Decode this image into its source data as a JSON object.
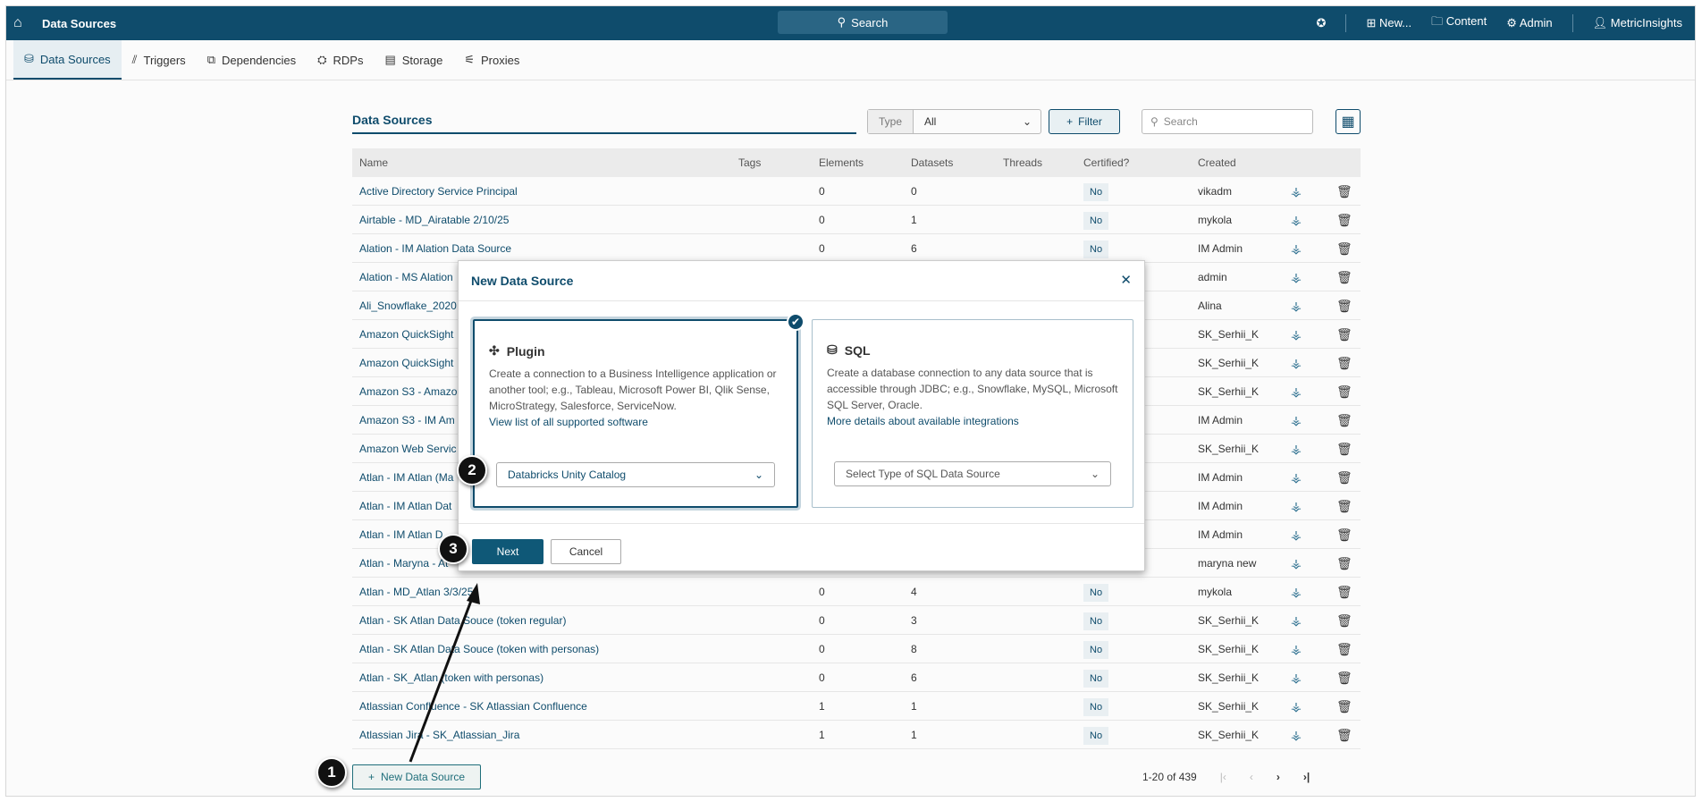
{
  "topbar": {
    "title": "Data Sources",
    "search": "Search",
    "new": "New...",
    "content": "Content",
    "admin": "Admin",
    "user": "MetricInsights"
  },
  "tabs": [
    {
      "label": "Data Sources",
      "icon": "database-icon"
    },
    {
      "label": "Triggers",
      "icon": "triggers-icon"
    },
    {
      "label": "Dependencies",
      "icon": "dependencies-icon"
    },
    {
      "label": "RDPs",
      "icon": "rdps-icon"
    },
    {
      "label": "Storage",
      "icon": "storage-icon"
    },
    {
      "label": "Proxies",
      "icon": "proxies-icon"
    }
  ],
  "panel": {
    "title": "Data Sources",
    "type_label": "Type",
    "type_value": "All",
    "filter": "Filter",
    "search_placeholder": "Search"
  },
  "columns": [
    "Name",
    "Tags",
    "Elements",
    "Datasets",
    "Threads",
    "Certified?",
    "Created"
  ],
  "rows": [
    {
      "name": "Active Directory Service Principal",
      "elements": "0",
      "datasets": "0",
      "certified": "No",
      "created": "vikadm"
    },
    {
      "name": "Airtable - MD_Airatable 2/10/25",
      "elements": "0",
      "datasets": "1",
      "certified": "No",
      "created": "mykola"
    },
    {
      "name": "Alation - IM Alation Data Source",
      "elements": "0",
      "datasets": "6",
      "certified": "No",
      "created": "IM Admin"
    },
    {
      "name": "Alation - MS Alation",
      "created": "admin"
    },
    {
      "name": "Ali_Snowflake_2020",
      "created": "Alina"
    },
    {
      "name": "Amazon QuickSight",
      "created": "SK_Serhii_K"
    },
    {
      "name": "Amazon QuickSight",
      "created": "SK_Serhii_K"
    },
    {
      "name": "Amazon S3 - Amazo",
      "created": "SK_Serhii_K"
    },
    {
      "name": "Amazon S3 - IM Am",
      "created": "IM Admin"
    },
    {
      "name": "Amazon Web Servic",
      "created": "SK_Serhii_K"
    },
    {
      "name": "Atlan - IM Atlan (Ma",
      "created": "IM Admin"
    },
    {
      "name": "Atlan - IM Atlan Dat",
      "created": "IM Admin"
    },
    {
      "name": "Atlan - IM Atlan D",
      "created": "IM Admin"
    },
    {
      "name": "Atlan - Maryna - At",
      "created": "maryna new"
    },
    {
      "name": "Atlan - MD_Atlan 3/3/25",
      "elements": "0",
      "datasets": "4",
      "certified": "No",
      "created": "mykola"
    },
    {
      "name": "Atlan - SK Atlan Data Souce (token regular)",
      "elements": "0",
      "datasets": "3",
      "certified": "No",
      "created": "SK_Serhii_K"
    },
    {
      "name": "Atlan - SK Atlan Data Souce (token with personas)",
      "elements": "0",
      "datasets": "8",
      "certified": "No",
      "created": "SK_Serhii_K"
    },
    {
      "name": "Atlan - SK_Atlan (token with personas)",
      "elements": "0",
      "datasets": "6",
      "certified": "No",
      "created": "SK_Serhii_K"
    },
    {
      "name": "Atlassian Confluence - SK Atlassian Confluence",
      "elements": "1",
      "datasets": "1",
      "certified": "No",
      "created": "SK_Serhii_K"
    },
    {
      "name": "Atlassian Jira - SK_Atlassian_Jira",
      "elements": "1",
      "datasets": "1",
      "certified": "No",
      "created": "SK_Serhii_K"
    }
  ],
  "footer": {
    "new_button": "New Data Source",
    "pagination": "1-20 of 439"
  },
  "modal": {
    "title": "New Data Source",
    "plugin": {
      "title": "Plugin",
      "desc": "Create a connection to a Business Intelligence application or another tool; e.g., Tableau, Microsoft Power BI, Qlik Sense, MicroStrategy, Salesforce, ServiceNow.",
      "link": "View list of all supported software",
      "selected": "Databricks Unity Catalog"
    },
    "sql": {
      "title": "SQL",
      "desc": "Create a database connection to any data source that is accessible through JDBC; e.g., Snowflake, MySQL, Microsoft SQL Server, Oracle.",
      "link": "More details about available integrations",
      "placeholder": "Select Type of SQL Data Source"
    },
    "next": "Next",
    "cancel": "Cancel"
  },
  "steps": [
    "1",
    "2",
    "3"
  ],
  "colors": {
    "brand": "#0f4c6c",
    "link": "#0f4c6c"
  }
}
